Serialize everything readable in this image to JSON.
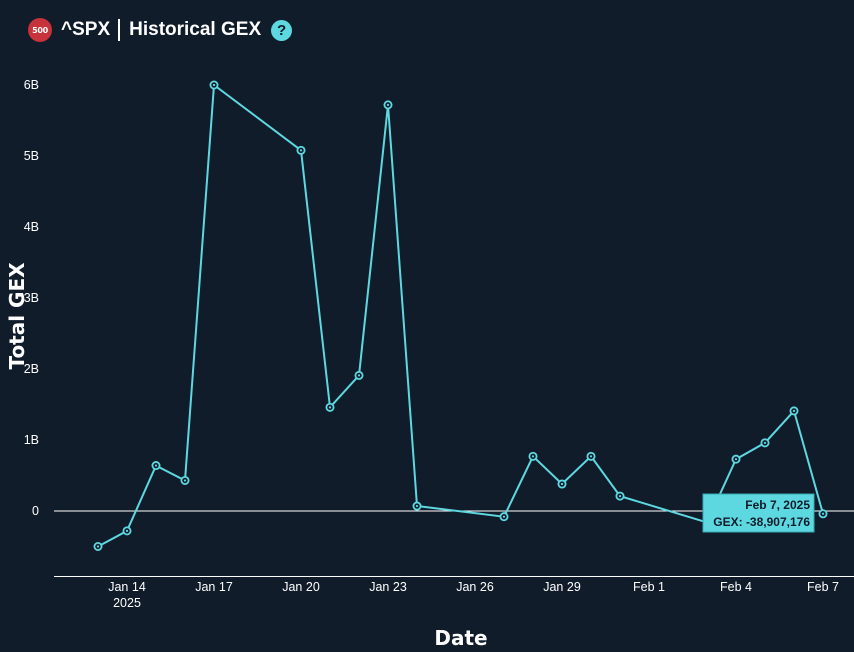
{
  "header": {
    "logo_text": "500",
    "ticker": "^SPX",
    "title": "Historical GEX",
    "help_icon": "question-circle-icon"
  },
  "colors": {
    "background": "#101c2a",
    "line": "#5ed8e0",
    "logo": "#c8323a",
    "tooltip": "#5ed8e0"
  },
  "chart_data": {
    "type": "line",
    "xlabel": "Date",
    "ylabel": "Total GEX",
    "ylim": [
      -1000000000,
      6300000000
    ],
    "y_ticks": [
      {
        "value": 0,
        "label": "0"
      },
      {
        "value": 1000000000,
        "label": "1B"
      },
      {
        "value": 2000000000,
        "label": "2B"
      },
      {
        "value": 3000000000,
        "label": "3B"
      },
      {
        "value": 4000000000,
        "label": "4B"
      },
      {
        "value": 5000000000,
        "label": "5B"
      },
      {
        "value": 6000000000,
        "label": "6B"
      }
    ],
    "x_ticks": [
      {
        "date": "2025-01-14",
        "label": "Jan 14",
        "sublabel": "2025"
      },
      {
        "date": "2025-01-17",
        "label": "Jan 17"
      },
      {
        "date": "2025-01-20",
        "label": "Jan 20"
      },
      {
        "date": "2025-01-23",
        "label": "Jan 23"
      },
      {
        "date": "2025-01-26",
        "label": "Jan 26"
      },
      {
        "date": "2025-01-29",
        "label": "Jan 29"
      },
      {
        "date": "2025-02-01",
        "label": "Feb 1"
      },
      {
        "date": "2025-02-04",
        "label": "Feb 4"
      },
      {
        "date": "2025-02-07",
        "label": "Feb 7"
      }
    ],
    "series": [
      {
        "points": [
          {
            "x": "2025-01-13",
            "y": -500000000
          },
          {
            "x": "2025-01-14",
            "y": -280000000
          },
          {
            "x": "2025-01-15",
            "y": 640000000
          },
          {
            "x": "2025-01-16",
            "y": 430000000
          },
          {
            "x": "2025-01-17",
            "y": 6000000000
          },
          {
            "x": "2025-01-20",
            "y": 5080000000
          },
          {
            "x": "2025-01-21",
            "y": 1460000000
          },
          {
            "x": "2025-01-22",
            "y": 1910000000
          },
          {
            "x": "2025-01-23",
            "y": 5720000000
          },
          {
            "x": "2025-01-24",
            "y": 70000000
          },
          {
            "x": "2025-01-27",
            "y": -80000000
          },
          {
            "x": "2025-01-28",
            "y": 770000000
          },
          {
            "x": "2025-01-29",
            "y": 380000000
          },
          {
            "x": "2025-01-30",
            "y": 770000000
          },
          {
            "x": "2025-01-31",
            "y": 210000000
          },
          {
            "x": "2025-02-03",
            "y": -160000000
          },
          {
            "x": "2025-02-04",
            "y": 730000000
          },
          {
            "x": "2025-02-05",
            "y": 960000000
          },
          {
            "x": "2025-02-06",
            "y": 1410000000
          },
          {
            "x": "2025-02-07",
            "y": -38907176
          }
        ]
      }
    ],
    "tooltip": {
      "date_text": "Feb 7, 2025",
      "value_text": "GEX: -38,907,176"
    }
  }
}
